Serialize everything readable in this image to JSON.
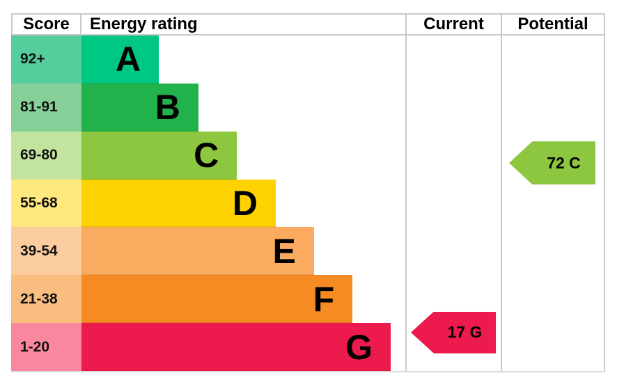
{
  "header": {
    "score": "Score",
    "rating": "Energy rating",
    "current": "Current",
    "potential": "Potential"
  },
  "chart_data": {
    "type": "bar",
    "title": "Energy efficiency rating (EPC) chart",
    "categories": [
      "A",
      "B",
      "C",
      "D",
      "E",
      "F",
      "G"
    ],
    "bands": [
      {
        "range": "92+",
        "letter": "A",
        "bar_color": "#00c781",
        "range_bg": "#56cd9c",
        "bar_width": "23.9%"
      },
      {
        "range": "81-91",
        "letter": "B",
        "bar_color": "#22b24c",
        "range_bg": "#86cf98",
        "bar_width": "36.1%"
      },
      {
        "range": "69-80",
        "letter": "C",
        "bar_color": "#8dc63f",
        "range_bg": "#c3e49e",
        "bar_width": "48.0%"
      },
      {
        "range": "55-68",
        "letter": "D",
        "bar_color": "#fed100",
        "range_bg": "#ffe87e",
        "bar_width": "60.0%"
      },
      {
        "range": "39-54",
        "letter": "E",
        "bar_color": "#fbab60",
        "range_bg": "#fbcd9e",
        "bar_width": "71.8%"
      },
      {
        "range": "21-38",
        "letter": "F",
        "bar_color": "#f58b22",
        "range_bg": "#f9bd80",
        "bar_width": "83.7%"
      },
      {
        "range": "1-20",
        "letter": "G",
        "bar_color": "#ed1a4d",
        "range_bg": "#f9879e",
        "bar_width": "95.5%"
      }
    ],
    "current": {
      "label": "17 G",
      "value": 17,
      "band": "G",
      "color": "#ed1a4d"
    },
    "potential": {
      "label": "72 C",
      "value": 72,
      "band": "C",
      "color": "#8dc63f"
    }
  }
}
